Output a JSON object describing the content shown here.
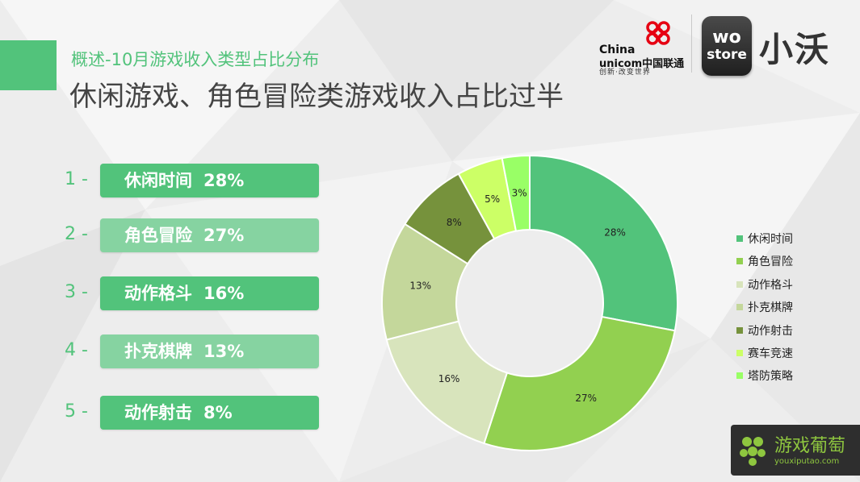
{
  "colors": {
    "accent": "#52c37b",
    "pill_dark": "#52c37b",
    "pill_light": "#86d3a1",
    "rank_text": "#52c37b",
    "subtitle": "#52c37b",
    "title": "#444444",
    "unicom_red": "#e60012",
    "badge_green": "#8ec63f"
  },
  "header": {
    "subtitle": "概述-10月游戏收入类型占比分布",
    "title": "休闲游戏、角色冒险类游戏收入占比过半"
  },
  "logos": {
    "unicom_line1": "China",
    "unicom_line2": "unicom中国联通",
    "unicom_slogan": "创新·改变世界",
    "wo_line1": "wo",
    "wo_line2": "store",
    "wo_brand": "小沃"
  },
  "ranking": [
    {
      "rank": "1 -",
      "name": "休闲时间",
      "pct": "28%",
      "style": "dark"
    },
    {
      "rank": "2 -",
      "name": "角色冒险",
      "pct": "27%",
      "style": "light"
    },
    {
      "rank": "3 -",
      "name": "动作格斗",
      "pct": "16%",
      "style": "dark"
    },
    {
      "rank": "4 -",
      "name": "扑克棋牌",
      "pct": "13%",
      "style": "light"
    },
    {
      "rank": "5 -",
      "name": "动作射击",
      "pct": "8%",
      "style": "dark"
    }
  ],
  "chart_data": {
    "type": "pie",
    "donut": true,
    "categories": [
      "休闲时间",
      "角色冒险",
      "动作格斗",
      "扑克棋牌",
      "动作射击",
      "赛车竞速",
      "塔防策略"
    ],
    "values": [
      28,
      27,
      16,
      13,
      8,
      5,
      3
    ],
    "labels": [
      "28%",
      "27%",
      "16%",
      "13%",
      "8%",
      "5%",
      "3%"
    ],
    "colors": [
      "#52c37b",
      "#92d050",
      "#d8e4bc",
      "#c4d79b",
      "#76923c",
      "#ccff66",
      "#99ff66"
    ],
    "legend_position": "right"
  },
  "badge": {
    "name": "游戏葡萄",
    "url": "youxiputao.com"
  }
}
